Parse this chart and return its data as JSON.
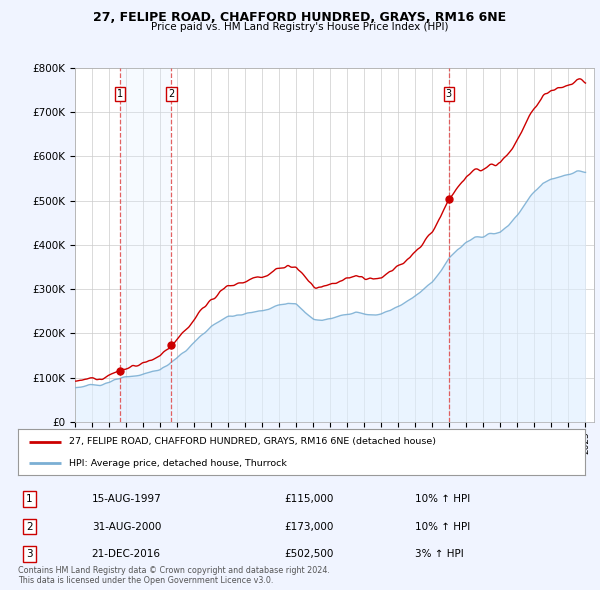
{
  "title1": "27, FELIPE ROAD, CHAFFORD HUNDRED, GRAYS, RM16 6NE",
  "title2": "Price paid vs. HM Land Registry's House Price Index (HPI)",
  "ylim": [
    0,
    800000
  ],
  "yticks": [
    0,
    100000,
    200000,
    300000,
    400000,
    500000,
    600000,
    700000,
    800000
  ],
  "ytick_labels": [
    "£0",
    "£100K",
    "£200K",
    "£300K",
    "£400K",
    "£500K",
    "£600K",
    "£700K",
    "£800K"
  ],
  "sale_prices": [
    115000,
    173000,
    502500
  ],
  "sale_labels": [
    "1",
    "2",
    "3"
  ],
  "sale_times": [
    1997.625,
    2000.667,
    2016.958
  ],
  "vline_color": "#e05050",
  "dot_color": "#cc0000",
  "line_color_sold": "#cc0000",
  "line_color_hpi": "#7bafd4",
  "fill_color_hpi": "#ddeeff",
  "fill_color_between_vlines": "#ddeeff",
  "legend_label_sold": "27, FELIPE ROAD, CHAFFORD HUNDRED, GRAYS, RM16 6NE (detached house)",
  "legend_label_hpi": "HPI: Average price, detached house, Thurrock",
  "table_entries": [
    {
      "label": "1",
      "date": "15-AUG-1997",
      "price": "£115,000",
      "pct": "10% ↑ HPI"
    },
    {
      "label": "2",
      "date": "31-AUG-2000",
      "price": "£173,000",
      "pct": "10% ↑ HPI"
    },
    {
      "label": "3",
      "date": "21-DEC-2016",
      "price": "£502,500",
      "pct": "3% ↑ HPI"
    }
  ],
  "footnote1": "Contains HM Land Registry data © Crown copyright and database right 2024.",
  "footnote2": "This data is licensed under the Open Government Licence v3.0.",
  "background_color": "#f0f4ff",
  "plot_bg_color": "#ffffff",
  "grid_color": "#cccccc",
  "hpi_anchors_x": [
    1995.0,
    1995.5,
    1996.0,
    1996.5,
    1997.0,
    1997.5,
    1998.0,
    1998.5,
    1999.0,
    1999.5,
    2000.0,
    2000.5,
    2001.0,
    2001.5,
    2002.0,
    2002.5,
    2003.0,
    2003.5,
    2004.0,
    2004.5,
    2005.0,
    2005.5,
    2006.0,
    2006.5,
    2007.0,
    2007.5,
    2008.0,
    2008.5,
    2009.0,
    2009.5,
    2010.0,
    2010.5,
    2011.0,
    2011.5,
    2012.0,
    2012.5,
    2013.0,
    2013.5,
    2014.0,
    2014.5,
    2015.0,
    2015.5,
    2016.0,
    2016.5,
    2017.0,
    2017.5,
    2018.0,
    2018.5,
    2019.0,
    2019.5,
    2020.0,
    2020.5,
    2021.0,
    2021.5,
    2022.0,
    2022.5,
    2023.0,
    2023.5,
    2024.0,
    2024.5
  ],
  "hpi_anchors_y": [
    78000,
    80000,
    82000,
    85000,
    90000,
    95000,
    100000,
    104000,
    108000,
    113000,
    118000,
    130000,
    145000,
    160000,
    178000,
    198000,
    215000,
    228000,
    238000,
    242000,
    244000,
    248000,
    252000,
    258000,
    264000,
    268000,
    265000,
    248000,
    235000,
    230000,
    232000,
    238000,
    244000,
    248000,
    244000,
    242000,
    245000,
    252000,
    262000,
    272000,
    285000,
    300000,
    318000,
    340000,
    370000,
    390000,
    405000,
    415000,
    420000,
    425000,
    428000,
    445000,
    468000,
    495000,
    520000,
    540000,
    548000,
    552000,
    558000,
    565000
  ]
}
